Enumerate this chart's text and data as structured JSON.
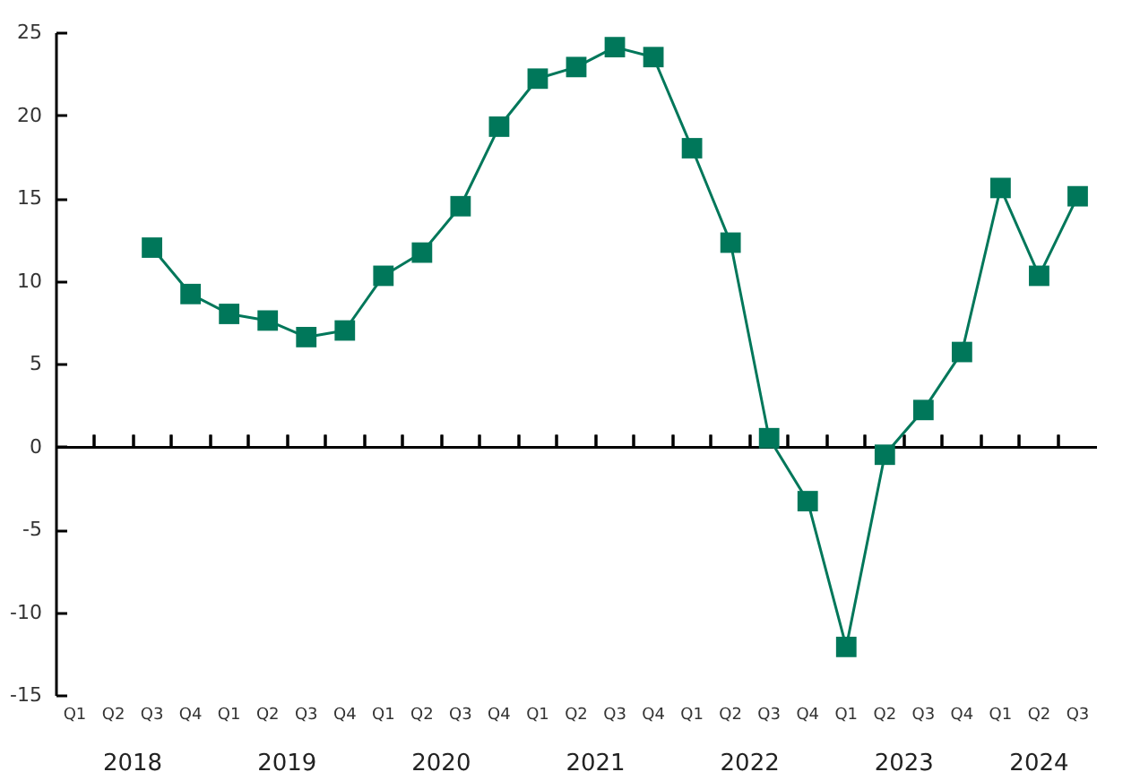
{
  "chart_data": {
    "type": "line",
    "categories": [
      "Q1",
      "Q2",
      "Q3",
      "Q4",
      "Q1",
      "Q2",
      "Q3",
      "Q4",
      "Q1",
      "Q2",
      "Q3",
      "Q4",
      "Q1",
      "Q2",
      "Q3",
      "Q4",
      "Q1",
      "Q2",
      "Q3",
      "Q4",
      "Q1",
      "Q2",
      "Q3",
      "Q4",
      "Q1",
      "Q2",
      "Q3"
    ],
    "series": [
      {
        "color": "#00775a",
        "values": [
          null,
          null,
          12.0,
          9.2,
          8.0,
          7.6,
          6.6,
          7.0,
          10.3,
          11.7,
          14.5,
          19.3,
          22.2,
          22.9,
          24.1,
          23.5,
          18.0,
          12.3,
          0.5,
          -3.3,
          -12.1,
          -0.5,
          2.2,
          5.7,
          15.6,
          10.3,
          15.1
        ]
      }
    ],
    "ylim": [
      -15,
      25
    ],
    "yticks": [
      -15,
      -10,
      -5,
      0,
      5,
      10,
      15,
      20,
      25
    ],
    "marker": "square",
    "annotations": [
      "2018",
      "2019",
      "2020",
      "2021",
      "2022",
      "2023",
      "2024"
    ]
  }
}
